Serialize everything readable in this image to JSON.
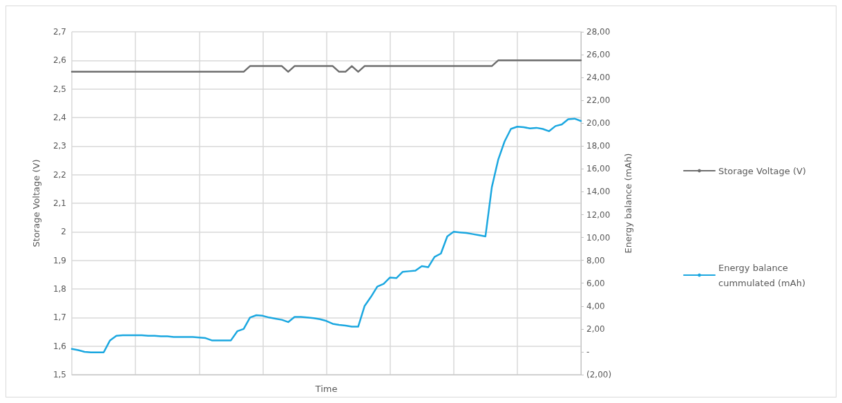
{
  "chart_data": {
    "type": "line",
    "xlabel": "Time",
    "ylabel": "Storage Voltage (V)",
    "y2label": "Energy balance (mAh)",
    "categories": [
      null,
      null,
      null,
      null,
      null,
      null,
      null,
      null,
      null,
      null,
      null,
      null,
      null,
      null,
      null,
      null,
      null,
      null,
      null,
      null,
      null,
      null,
      null,
      null,
      null,
      null,
      null,
      null,
      null,
      null,
      null,
      null,
      null,
      null,
      null,
      null,
      null,
      null,
      null,
      null,
      null,
      null,
      null,
      null,
      null,
      null,
      null,
      null,
      null,
      null,
      null,
      null,
      null,
      null,
      null,
      null,
      null,
      null,
      null,
      null,
      null,
      null,
      null,
      null,
      null,
      null,
      null,
      null,
      null,
      null,
      null,
      null,
      null,
      null,
      null,
      null,
      null,
      null,
      null,
      null,
      null
    ],
    "series": [
      {
        "name": "Storage Voltage (V)",
        "color": "#6d6d6d",
        "values": [
          2.56,
          2.56,
          2.56,
          2.56,
          2.56,
          2.56,
          2.56,
          2.56,
          2.56,
          2.56,
          2.56,
          2.56,
          2.56,
          2.56,
          2.56,
          2.56,
          2.56,
          2.56,
          2.56,
          2.56,
          2.56,
          2.56,
          2.56,
          2.56,
          2.56,
          2.56,
          2.56,
          2.56,
          2.58,
          2.58,
          2.58,
          2.58,
          2.58,
          2.58,
          2.56,
          2.58,
          2.58,
          2.58,
          2.58,
          2.58,
          2.58,
          2.58,
          2.56,
          2.56,
          2.58,
          2.56,
          2.58,
          2.58,
          2.58,
          2.58,
          2.58,
          2.58,
          2.58,
          2.58,
          2.58,
          2.58,
          2.58,
          2.58,
          2.58,
          2.58,
          2.58,
          2.58,
          2.58,
          2.58,
          2.58,
          2.58,
          2.58,
          2.6,
          2.6,
          2.6,
          2.6,
          2.6,
          2.6,
          2.6,
          2.6,
          2.6,
          2.6,
          2.6,
          2.6,
          2.6,
          2.6
        ]
      },
      {
        "name": "Energy balance cummulated (mAh)",
        "color": "#1aa7e0",
        "axis": "y2",
        "values": [
          0.25,
          0.15,
          0.0,
          -0.05,
          -0.05,
          -0.05,
          1.0,
          1.4,
          1.45,
          1.45,
          1.45,
          1.45,
          1.4,
          1.4,
          1.35,
          1.35,
          1.3,
          1.3,
          1.3,
          1.3,
          1.25,
          1.2,
          1.0,
          1.0,
          1.0,
          1.0,
          1.8,
          2.0,
          3.0,
          3.2,
          3.15,
          3.0,
          2.9,
          2.8,
          2.6,
          3.05,
          3.05,
          3.0,
          2.95,
          2.85,
          2.7,
          2.45,
          2.35,
          2.3,
          2.2,
          2.2,
          4.0,
          4.8,
          5.7,
          5.95,
          6.5,
          6.45,
          7.0,
          7.05,
          7.1,
          7.5,
          7.4,
          8.3,
          8.6,
          10.1,
          10.5,
          10.45,
          10.4,
          10.3,
          10.2,
          10.1,
          14.4,
          16.8,
          18.4,
          19.5,
          19.7,
          19.65,
          19.55,
          19.6,
          19.5,
          19.3,
          19.75,
          19.9,
          20.35,
          20.4,
          20.2
        ]
      }
    ],
    "ylim": [
      1.5,
      2.7
    ],
    "yticks": [
      {
        "value": 1.5,
        "label": "1,5"
      },
      {
        "value": 1.6,
        "label": "1,6"
      },
      {
        "value": 1.7,
        "label": "1,7"
      },
      {
        "value": 1.8,
        "label": "1,8"
      },
      {
        "value": 1.9,
        "label": "1,9"
      },
      {
        "value": 2,
        "label": "2"
      },
      {
        "value": 2.1,
        "label": "2,1"
      },
      {
        "value": 2.2,
        "label": "2,2"
      },
      {
        "value": 2.3,
        "label": "2,3"
      },
      {
        "value": 2.4,
        "label": "2,4"
      },
      {
        "value": 2.5,
        "label": "2,5"
      },
      {
        "value": 2.6,
        "label": "2,6"
      },
      {
        "value": 2.7,
        "label": "2,7"
      }
    ],
    "y2lim": [
      -2,
      28
    ],
    "y2ticks": [
      {
        "value": -2,
        "label": "(2,00)"
      },
      {
        "value": 0,
        "label": "-"
      },
      {
        "value": 2,
        "label": "2,00"
      },
      {
        "value": 4,
        "label": "4,00"
      },
      {
        "value": 6,
        "label": "6,00"
      },
      {
        "value": 8,
        "label": "8,00"
      },
      {
        "value": 10,
        "label": "10,00"
      },
      {
        "value": 12,
        "label": "12,00"
      },
      {
        "value": 14,
        "label": "14,00"
      },
      {
        "value": 16,
        "label": "16,00"
      },
      {
        "value": 18,
        "label": "18,00"
      },
      {
        "value": 20,
        "label": "20,00"
      },
      {
        "value": 22,
        "label": "22,00"
      },
      {
        "value": 24,
        "label": "24,00"
      },
      {
        "value": 26,
        "label": "26,00"
      },
      {
        "value": 28,
        "label": "28,00"
      }
    ],
    "grid": true,
    "legend": "right",
    "line_style": "solid"
  }
}
